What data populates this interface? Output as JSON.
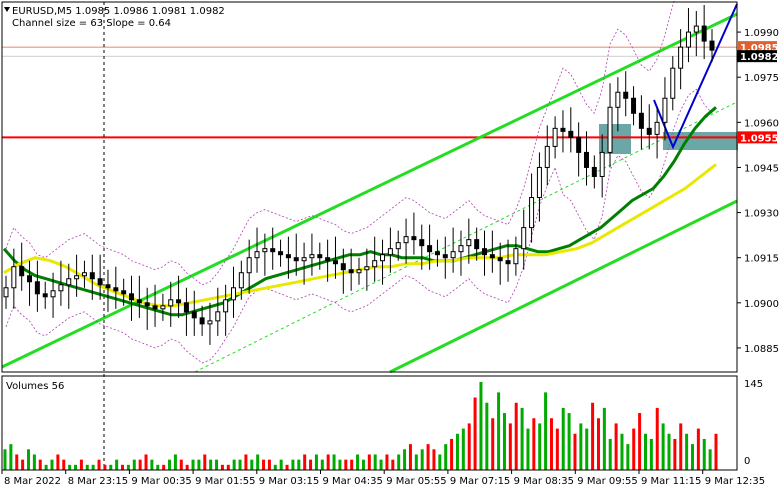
{
  "header": {
    "symbol_line": "EURUSD,M5  1.0985 1.0986 1.0981 1.0982",
    "channel_line": "Channel size = 63 Slope = 0.64"
  },
  "volume_panel": {
    "label": "Volumes 56"
  },
  "chart_data": [
    {
      "type": "line",
      "title": "EURUSD,M5",
      "ohlc_last": {
        "open": 1.0985,
        "high": 1.0986,
        "low": 1.0981,
        "close": 1.0982
      },
      "channel": {
        "size": 63,
        "slope": 0.64
      },
      "ylim": [
        1.0877,
        1.1
      ],
      "y_ticks": [
        "1.0990",
        "1.0975",
        "1.0960",
        "1.0945",
        "1.0930",
        "1.0915",
        "1.0900",
        "1.0885"
      ],
      "x_tick_labels": [
        "8 Mar 2022",
        "8 Mar 23:15",
        "9 Mar 00:35",
        "9 Mar 01:55",
        "9 Mar 03:15",
        "9 Mar 04:35",
        "9 Mar 05:55",
        "9 Mar 07:15",
        "9 Mar 08:35",
        "9 Mar 09:55",
        "9 Mar 11:15",
        "9 Mar 12:35"
      ],
      "price_levels": [
        {
          "label": "1.0985",
          "value": 1.0985,
          "color": "#e06030"
        },
        {
          "label": "1.0982",
          "value": 1.0982,
          "color": "#000000"
        },
        {
          "label": "1.0955",
          "value": 1.0955,
          "color": "#ff0000"
        }
      ],
      "colors": {
        "candles": "#000000",
        "ma_green": "#008000",
        "ma_yellow": "#e8e800",
        "channel_lines": "#22dd22",
        "bollinger": "#b040b0",
        "resistance": "#ff0000",
        "arrow": "#0000cc",
        "zone": "#3a8a8a"
      },
      "series": [
        {
          "values": [
            1.0905,
            1.0912,
            1.0909,
            1.0907,
            1.0903,
            1.0902,
            1.0904,
            1.0906,
            1.0908,
            1.0909,
            1.091,
            1.0908,
            1.0906,
            1.0905,
            1.0904,
            1.0903,
            1.0901,
            1.09,
            1.0899,
            1.0898,
            1.0899,
            1.0901,
            1.09,
            1.0897,
            1.0895,
            1.0893,
            1.0894,
            1.0897,
            1.0901,
            1.0905,
            1.091,
            1.0915,
            1.0917,
            1.0918,
            1.0917,
            1.0916,
            1.0915,
            1.0914,
            1.0915,
            1.0916,
            1.0915,
            1.0914,
            1.0913,
            1.0911,
            1.091,
            1.0911,
            1.0912,
            1.0914,
            1.0916,
            1.0918,
            1.092,
            1.0922,
            1.0921,
            1.0919,
            1.0917,
            1.0916,
            1.0915,
            1.0917,
            1.0919,
            1.0921,
            1.0918,
            1.0916,
            1.0915,
            1.0914,
            1.0913,
            1.0918,
            1.0925,
            1.0935,
            1.0945,
            1.0952,
            1.0958,
            1.0957,
            1.0955,
            1.095,
            1.0945,
            1.0942,
            1.095,
            1.0965,
            1.097,
            1.0968,
            1.0963,
            1.0958,
            1.0956,
            1.096,
            1.0968,
            1.0978,
            1.0985,
            1.099,
            1.0992,
            1.0987,
            1.0984
          ]
        },
        {
          "values": [
            1.0918,
            1.0914,
            1.0911,
            1.0909,
            1.0908,
            1.0907,
            1.0906,
            1.0905,
            1.0904,
            1.0903,
            1.0902,
            1.0901,
            1.09,
            1.0899,
            1.0898,
            1.0897,
            1.0896,
            1.0896,
            1.0897,
            1.0898,
            1.0899,
            1.09,
            1.0902,
            1.0904,
            1.0906,
            1.0908,
            1.0909,
            1.091,
            1.0911,
            1.0912,
            1.0913,
            1.0914,
            1.0915,
            1.0916,
            1.0916,
            1.0917,
            1.0916,
            1.0916,
            1.0915,
            1.0915,
            1.0915,
            1.0914,
            1.0914,
            1.0914,
            1.0915,
            1.0916,
            1.0917,
            1.0918,
            1.0919,
            1.0919,
            1.0918,
            1.0917,
            1.0917,
            1.0918,
            1.0919,
            1.0921,
            1.0923,
            1.0925,
            1.0928,
            1.0931,
            1.0934,
            1.0936,
            1.0938,
            1.0942,
            1.0947,
            1.0953,
            1.0958,
            1.0962,
            1.0965
          ]
        },
        {
          "values": [
            1.091,
            1.0913,
            1.0915,
            1.0914,
            1.0912,
            1.0909,
            1.0906,
            1.0904,
            1.0902,
            1.09,
            1.0899,
            1.0899,
            1.09,
            1.0901,
            1.0902,
            1.0903,
            1.0904,
            1.0905,
            1.0906,
            1.0907,
            1.0908,
            1.0909,
            1.091,
            1.0911,
            1.0912,
            1.0912,
            1.0913,
            1.0913,
            1.0914,
            1.0914,
            1.0915,
            1.0915,
            1.0915,
            1.0916,
            1.0916,
            1.0916,
            1.0917,
            1.0918,
            1.092,
            1.0923,
            1.0926,
            1.0929,
            1.0932,
            1.0935,
            1.0938,
            1.0942,
            1.0946
          ]
        },
        {
          "values": [
            4,
            5,
            3,
            2,
            4,
            3,
            2,
            1,
            2,
            3,
            2,
            1,
            1,
            2,
            1,
            1,
            2,
            1,
            1,
            2,
            1,
            1,
            2,
            2,
            3,
            2,
            1,
            1,
            2,
            3,
            2,
            1,
            2,
            2,
            3,
            2,
            2,
            1,
            1,
            2,
            2,
            3,
            2,
            3,
            2,
            2,
            1,
            2,
            1,
            2,
            2,
            3,
            2,
            3,
            2,
            3,
            3,
            2,
            2,
            2,
            3,
            2,
            3,
            3,
            2,
            3,
            2,
            3,
            4,
            5,
            3,
            4,
            5,
            4,
            3,
            5,
            6,
            7,
            8,
            9,
            14,
            17,
            13,
            10,
            15,
            11,
            9,
            13,
            12,
            8,
            10,
            9,
            15,
            10,
            8,
            12,
            11,
            7,
            9,
            8,
            13,
            10,
            12,
            6,
            9,
            7,
            5,
            8,
            11,
            7,
            6,
            12,
            9,
            7,
            6,
            9,
            7,
            5,
            8,
            6,
            4,
            7
          ]
        }
      ]
    }
  ]
}
